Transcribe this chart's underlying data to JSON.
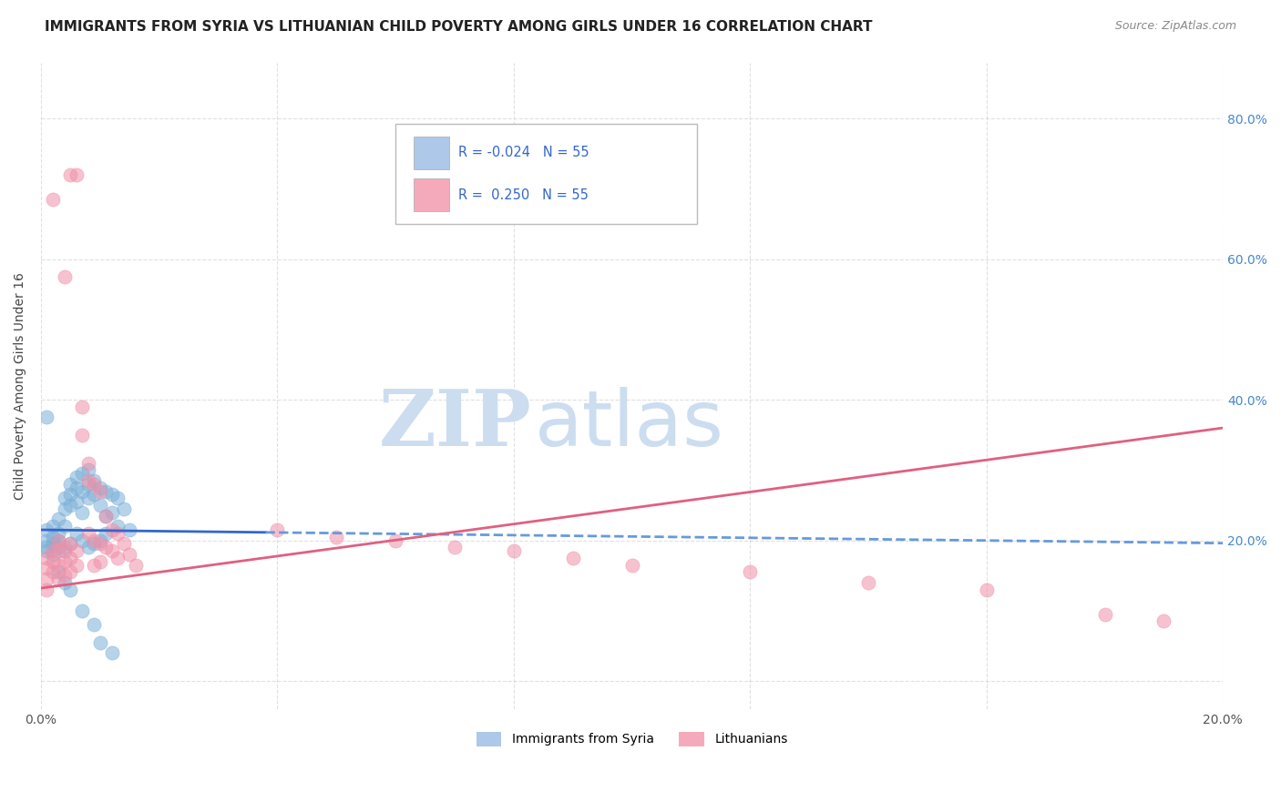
{
  "title": "IMMIGRANTS FROM SYRIA VS LITHUANIAN CHILD POVERTY AMONG GIRLS UNDER 16 CORRELATION CHART",
  "source": "Source: ZipAtlas.com",
  "ylabel": "Child Poverty Among Girls Under 16",
  "xlim": [
    0.0,
    0.2
  ],
  "ylim": [
    -0.04,
    0.88
  ],
  "xtick_positions": [
    0.0,
    0.04,
    0.08,
    0.12,
    0.16,
    0.2
  ],
  "xticklabels": [
    "0.0%",
    "",
    "",
    "",
    "",
    "20.0%"
  ],
  "ytick_positions": [
    0.0,
    0.2,
    0.4,
    0.6,
    0.8
  ],
  "yticklabels_right": [
    "",
    "20.0%",
    "40.0%",
    "60.0%",
    "80.0%"
  ],
  "legend_entries": [
    {
      "label": "Immigrants from Syria",
      "color": "#adc8e8"
    },
    {
      "label": "Lithuanians",
      "color": "#f5aabb"
    }
  ],
  "R_syria": -0.024,
  "N_syria": 55,
  "R_lith": 0.25,
  "N_lith": 55,
  "syria_dot_color": "#7ab0d8",
  "lith_dot_color": "#f090a8",
  "syria_line_solid_color": "#3366cc",
  "syria_line_dash_color": "#6699dd",
  "lith_line_color": "#e06080",
  "watermark_zip": "ZIP",
  "watermark_atlas": "atlas",
  "watermark_color": "#ccddf0",
  "scatter_syria": [
    [
      0.001,
      0.215
    ],
    [
      0.001,
      0.2
    ],
    [
      0.001,
      0.19
    ],
    [
      0.001,
      0.185
    ],
    [
      0.002,
      0.22
    ],
    [
      0.002,
      0.205
    ],
    [
      0.002,
      0.195
    ],
    [
      0.002,
      0.18
    ],
    [
      0.003,
      0.23
    ],
    [
      0.003,
      0.21
    ],
    [
      0.003,
      0.2
    ],
    [
      0.003,
      0.19
    ],
    [
      0.004,
      0.26
    ],
    [
      0.004,
      0.245
    ],
    [
      0.004,
      0.22
    ],
    [
      0.004,
      0.185
    ],
    [
      0.005,
      0.28
    ],
    [
      0.005,
      0.265
    ],
    [
      0.005,
      0.25
    ],
    [
      0.005,
      0.195
    ],
    [
      0.006,
      0.29
    ],
    [
      0.006,
      0.275
    ],
    [
      0.006,
      0.255
    ],
    [
      0.006,
      0.21
    ],
    [
      0.007,
      0.295
    ],
    [
      0.007,
      0.27
    ],
    [
      0.007,
      0.24
    ],
    [
      0.007,
      0.2
    ],
    [
      0.008,
      0.3
    ],
    [
      0.008,
      0.28
    ],
    [
      0.008,
      0.26
    ],
    [
      0.008,
      0.19
    ],
    [
      0.009,
      0.285
    ],
    [
      0.009,
      0.265
    ],
    [
      0.009,
      0.195
    ],
    [
      0.01,
      0.275
    ],
    [
      0.01,
      0.25
    ],
    [
      0.01,
      0.2
    ],
    [
      0.011,
      0.27
    ],
    [
      0.011,
      0.235
    ],
    [
      0.011,
      0.21
    ],
    [
      0.012,
      0.265
    ],
    [
      0.012,
      0.24
    ],
    [
      0.013,
      0.26
    ],
    [
      0.013,
      0.22
    ],
    [
      0.014,
      0.245
    ],
    [
      0.015,
      0.215
    ],
    [
      0.001,
      0.375
    ],
    [
      0.003,
      0.155
    ],
    [
      0.004,
      0.14
    ],
    [
      0.005,
      0.13
    ],
    [
      0.007,
      0.1
    ],
    [
      0.009,
      0.08
    ],
    [
      0.01,
      0.055
    ],
    [
      0.012,
      0.04
    ]
  ],
  "scatter_lith": [
    [
      0.001,
      0.175
    ],
    [
      0.001,
      0.16
    ],
    [
      0.001,
      0.145
    ],
    [
      0.001,
      0.13
    ],
    [
      0.002,
      0.185
    ],
    [
      0.002,
      0.17
    ],
    [
      0.002,
      0.155
    ],
    [
      0.003,
      0.2
    ],
    [
      0.003,
      0.185
    ],
    [
      0.003,
      0.165
    ],
    [
      0.003,
      0.145
    ],
    [
      0.004,
      0.19
    ],
    [
      0.004,
      0.17
    ],
    [
      0.004,
      0.15
    ],
    [
      0.005,
      0.195
    ],
    [
      0.005,
      0.175
    ],
    [
      0.005,
      0.155
    ],
    [
      0.006,
      0.185
    ],
    [
      0.006,
      0.165
    ],
    [
      0.007,
      0.39
    ],
    [
      0.007,
      0.35
    ],
    [
      0.008,
      0.31
    ],
    [
      0.008,
      0.285
    ],
    [
      0.008,
      0.21
    ],
    [
      0.009,
      0.28
    ],
    [
      0.009,
      0.2
    ],
    [
      0.009,
      0.165
    ],
    [
      0.01,
      0.27
    ],
    [
      0.01,
      0.195
    ],
    [
      0.01,
      0.17
    ],
    [
      0.011,
      0.235
    ],
    [
      0.011,
      0.19
    ],
    [
      0.012,
      0.215
    ],
    [
      0.012,
      0.185
    ],
    [
      0.013,
      0.21
    ],
    [
      0.013,
      0.175
    ],
    [
      0.014,
      0.195
    ],
    [
      0.015,
      0.18
    ],
    [
      0.016,
      0.165
    ],
    [
      0.04,
      0.215
    ],
    [
      0.05,
      0.205
    ],
    [
      0.06,
      0.2
    ],
    [
      0.07,
      0.19
    ],
    [
      0.08,
      0.185
    ],
    [
      0.09,
      0.175
    ],
    [
      0.1,
      0.165
    ],
    [
      0.12,
      0.155
    ],
    [
      0.14,
      0.14
    ],
    [
      0.16,
      0.13
    ],
    [
      0.18,
      0.095
    ],
    [
      0.19,
      0.085
    ],
    [
      0.002,
      0.685
    ],
    [
      0.004,
      0.575
    ],
    [
      0.005,
      0.72
    ],
    [
      0.006,
      0.72
    ]
  ],
  "background_color": "#ffffff",
  "grid_color": "#cccccc",
  "title_fontsize": 11,
  "label_fontsize": 10,
  "tick_fontsize": 10,
  "source_fontsize": 9
}
